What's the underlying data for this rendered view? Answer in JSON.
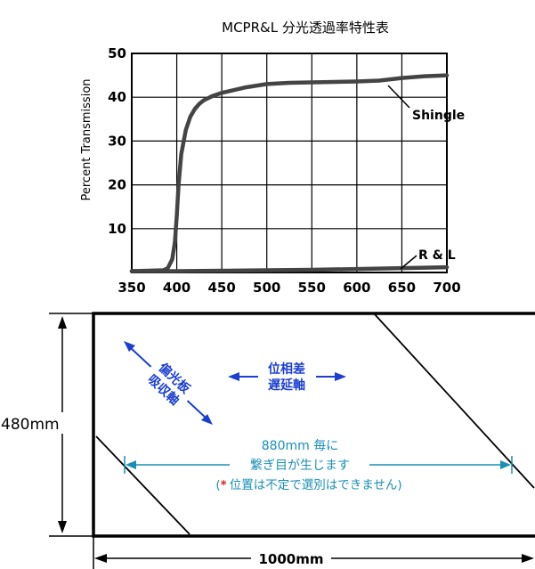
{
  "chart_data": {
    "type": "line",
    "title": "MCPR&L 分光透過率特性表",
    "ylabel": "Percent Transmission",
    "xlabel": "",
    "xlim": [
      350,
      700
    ],
    "ylim": [
      0,
      50
    ],
    "x_ticks": [
      "350",
      "400",
      "450",
      "500",
      "550",
      "600",
      "650",
      "700"
    ],
    "y_ticks": [
      "10",
      "20",
      "30",
      "40",
      "50"
    ],
    "grid": true,
    "series": [
      {
        "name": "Shingle",
        "x": [
          350,
          385,
          390,
          395,
          398,
          400,
          402,
          405,
          410,
          415,
          420,
          425,
          430,
          440,
          450,
          475,
          500,
          525,
          550,
          575,
          600,
          625,
          650,
          675,
          700
        ],
        "y": [
          0.3,
          0.5,
          1.0,
          3.0,
          7.0,
          13.0,
          20.0,
          27.0,
          32.5,
          35.5,
          37.3,
          38.5,
          39.3,
          40.3,
          41.0,
          42.2,
          43.0,
          43.3,
          43.4,
          43.5,
          43.6,
          43.8,
          44.4,
          44.8,
          45.0
        ]
      },
      {
        "name": "R & L",
        "x": [
          350,
          400,
          450,
          500,
          550,
          600,
          650,
          700
        ],
        "y": [
          0.3,
          0.3,
          0.4,
          0.5,
          0.6,
          0.8,
          1.0,
          1.2
        ]
      }
    ]
  },
  "diagram": {
    "height_label": "480mm",
    "width_label": "1000mm",
    "polarizer_label_line1": "偏光板",
    "polarizer_label_line2": "吸収軸",
    "retarder_label_line1": "位相差",
    "retarder_label_line2": "遅延軸",
    "seam_note_line1": "880mm 毎に",
    "seam_note_line2": "繋ぎ目が生じます",
    "seam_note_line3": "位置は不定で選別はできません",
    "seam_note_prefix": "(",
    "seam_note_asterisk": "*",
    "seam_note_suffix": ")"
  },
  "colors": {
    "blue_label": "#1a3fd1",
    "cyan_dim": "#1a8fb5",
    "asterisk": "#e02020"
  }
}
